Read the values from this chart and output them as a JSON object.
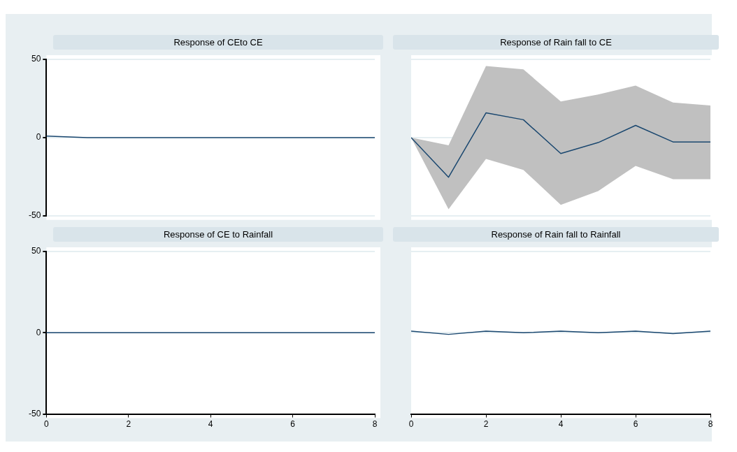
{
  "chart_data": [
    {
      "type": "line",
      "title": "Response of CEto CE",
      "x": [
        0,
        1,
        2,
        3,
        4,
        5,
        6,
        7,
        8
      ],
      "xlim": [
        0,
        8
      ],
      "xticks": [
        0,
        2,
        4,
        6,
        8
      ],
      "ylim": [
        -50,
        50
      ],
      "yticks": [
        -50,
        0,
        50
      ],
      "grid": "y",
      "tick_labels": "y",
      "series": [
        {
          "color": "#1a476f",
          "values": [
            1,
            0,
            0,
            0,
            0,
            0,
            0,
            0,
            0
          ]
        }
      ]
    },
    {
      "type": "line",
      "title": "Response of Rain fall to CE",
      "x": [
        0,
        1,
        2,
        3,
        4,
        5,
        6,
        7,
        8
      ],
      "xlim": [
        0,
        8
      ],
      "xticks": [
        0,
        2,
        4,
        6,
        8
      ],
      "ylim": [
        -50,
        50
      ],
      "yticks": [
        -50,
        0,
        50
      ],
      "grid": "y",
      "tick_labels": false,
      "series": [
        {
          "color": "#1a476f",
          "values": [
            0,
            -25.4,
            15.8,
            11.4,
            -10.2,
            -3.2,
            7.8,
            -2.8,
            -2.8
          ],
          "lower": [
            0,
            -45.9,
            -13.7,
            -20.7,
            -43,
            -34.2,
            -18.1,
            -26.6,
            -26.6
          ],
          "upper": [
            0,
            -5,
            45.8,
            43.6,
            23.1,
            27.5,
            33.3,
            22.4,
            20.5
          ]
        }
      ]
    },
    {
      "type": "line",
      "title": "Response of CE to Rainfall",
      "x": [
        0,
        1,
        2,
        3,
        4,
        5,
        6,
        7,
        8
      ],
      "xlim": [
        0,
        8
      ],
      "xticks": [
        0,
        2,
        4,
        6,
        8
      ],
      "ylim": [
        -50,
        50
      ],
      "yticks": [
        -50,
        0,
        50
      ],
      "grid": "y",
      "series": [
        {
          "color": "#1a476f",
          "values": [
            0,
            0,
            0,
            0,
            0,
            0,
            0,
            0,
            0
          ]
        }
      ]
    },
    {
      "type": "line",
      "title": "Response of Rain fall to Rainfall",
      "x": [
        0,
        1,
        2,
        3,
        4,
        5,
        6,
        7,
        8
      ],
      "xlim": [
        0,
        8
      ],
      "xticks": [
        0,
        2,
        4,
        6,
        8
      ],
      "ylim": [
        -50,
        50
      ],
      "yticks": [
        -50,
        0,
        50
      ],
      "grid": "y",
      "tick_labels": "x",
      "series": [
        {
          "color": "#1a476f",
          "values": [
            1,
            -1,
            1,
            0,
            1,
            0,
            1,
            -0.5,
            1
          ]
        }
      ]
    }
  ]
}
